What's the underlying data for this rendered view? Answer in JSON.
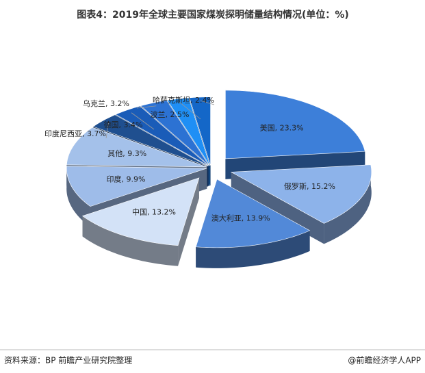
{
  "chart_data": {
    "type": "pie3d",
    "title": "图表4：2019年全球主要国家煤炭探明储量结构情况(单位：%)",
    "values": [
      23.3,
      15.2,
      13.9,
      13.2,
      9.9,
      9.3,
      3.7,
      3.4,
      3.2,
      2.5,
      2.4
    ],
    "value_labels": [
      "美国, 23.3%",
      "俄罗斯, 15.2%",
      "澳大利亚, 13.9%",
      "中国, 13.2%",
      "印度, 9.9%",
      "其他, 9.3%",
      "印度尼西亚, 3.7%",
      "德国, 3.4%",
      "乌克兰, 3.2%",
      "波兰, 2.5%",
      "哈萨克斯坦, 2.4%"
    ],
    "colors": [
      "#3d7fd9",
      "#8db3ea",
      "#5289d8",
      "#d3e2f7",
      "#9ebce9",
      "#a4c1ea",
      "#1f4f8f",
      "#1a5cb8",
      "#2c72d3",
      "#1f8ff5",
      "#1467c8"
    ]
  },
  "footer": {
    "source": "资料来源：BP  前瞻产业研究院整理",
    "brand": "@前瞻经济学人APP"
  }
}
